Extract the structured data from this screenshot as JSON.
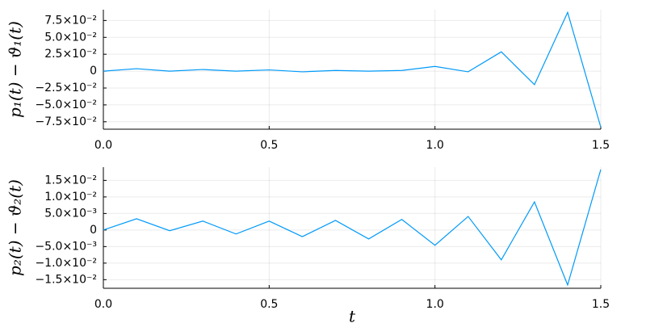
{
  "chart_data": [
    {
      "type": "line",
      "y_label": "p₁(t) − ϑ₁(t)",
      "x": [
        0,
        0.1,
        0.2,
        0.3,
        0.4,
        0.5,
        0.6,
        0.7,
        0.8,
        0.9,
        1.0,
        1.1,
        1.2,
        1.3,
        1.4,
        1.5
      ],
      "series": [
        {
          "color": "#009af9",
          "values": [
            0,
            0.0036,
            0,
            0.0024,
            0,
            0.0018,
            -0.001,
            0.001,
            0,
            0.001,
            0.007,
            -0.001,
            0.0286,
            -0.02,
            0.087,
            -0.083
          ]
        }
      ],
      "xlim": [
        0,
        1.5
      ],
      "xticks": [
        {
          "value": 0,
          "label": "0.0"
        },
        0.5,
        {
          "value": 1.0,
          "label": "1.0"
        },
        1.5
      ],
      "ylim": [
        -0.086,
        0.091
      ],
      "yticks": [
        {
          "value": 0.075,
          "label": "7.5×10⁻²"
        },
        {
          "value": 0.05,
          "label": "5.0×10⁻²"
        },
        {
          "value": 0.025,
          "label": "2.5×10⁻²"
        },
        0,
        {
          "value": -0.025,
          "label": "−2.5×10⁻²"
        },
        {
          "value": -0.05,
          "label": "−5.0×10⁻²"
        },
        {
          "value": -0.075,
          "label": "−7.5×10⁻²"
        }
      ],
      "grid": true
    },
    {
      "type": "line",
      "y_label": "p₂(t) − ϑ₂(t)",
      "x_label": "t",
      "x": [
        0,
        0.1,
        0.2,
        0.3,
        0.4,
        0.5,
        0.6,
        0.7,
        0.8,
        0.9,
        1.0,
        1.1,
        1.2,
        1.3,
        1.4,
        1.5
      ],
      "series": [
        {
          "color": "#009af9",
          "values": [
            0,
            0.0034,
            -0.0002,
            0.0027,
            -0.0012,
            0.0027,
            -0.002,
            0.0029,
            -0.0027,
            0.0032,
            -0.0046,
            0.0041,
            -0.009,
            0.0085,
            -0.0166,
            0.0183
          ]
        }
      ],
      "xlim": [
        0,
        1.5
      ],
      "xticks": [
        {
          "value": 0,
          "label": "0.0"
        },
        0.5,
        {
          "value": 1.0,
          "label": "1.0"
        },
        1.5
      ],
      "ylim": [
        -0.0176,
        0.019
      ],
      "yticks": [
        {
          "value": 0.015,
          "label": "1.5×10⁻²"
        },
        {
          "value": 0.01,
          "label": "1.0×10⁻²"
        },
        {
          "value": 0.005,
          "label": "5.0×10⁻³"
        },
        0,
        {
          "value": -0.005,
          "label": "−5.0×10⁻³"
        },
        {
          "value": -0.01,
          "label": "−1.0×10⁻²"
        },
        {
          "value": -0.015,
          "label": "−1.5×10⁻²"
        }
      ],
      "grid": true
    }
  ]
}
